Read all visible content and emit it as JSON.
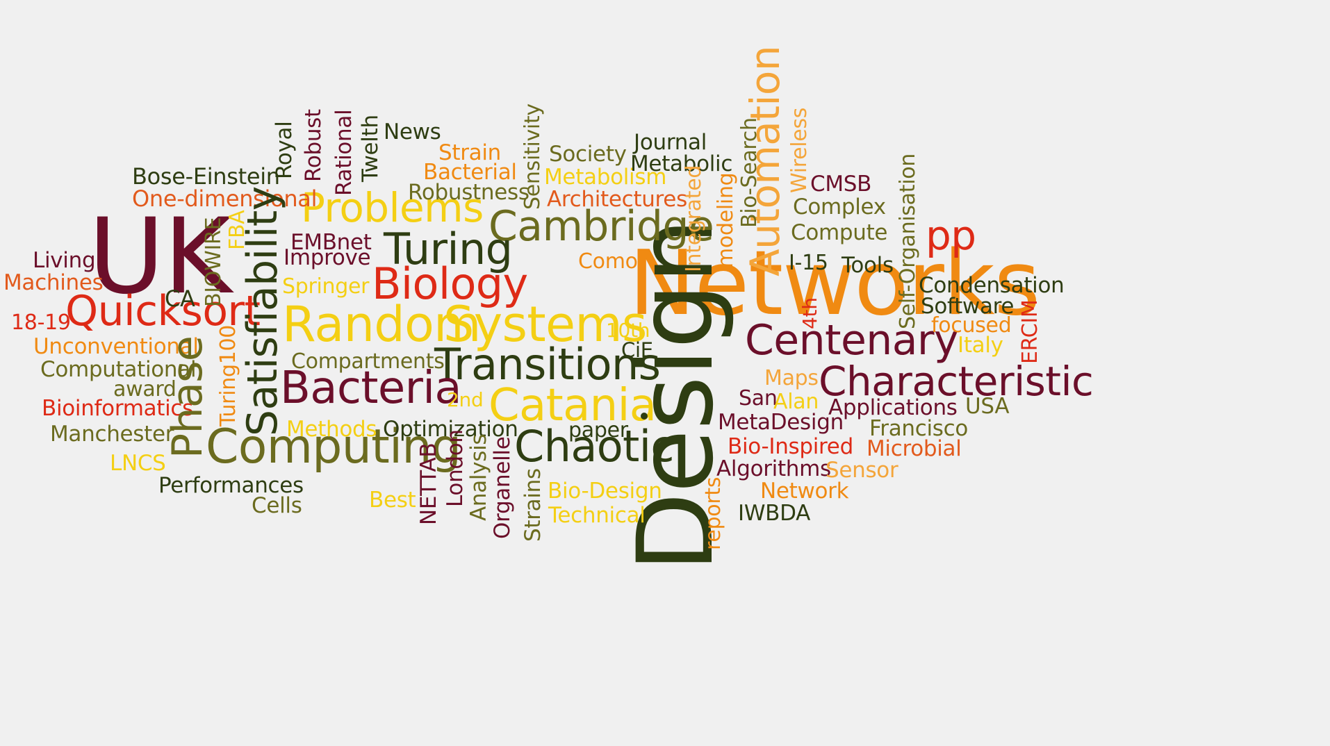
{
  "palette": {
    "maroon": "#6b0f2a",
    "dark_green": "#2e3d12",
    "olive": "#6b6b1f",
    "orange": "#f08a12",
    "light_orange": "#f4a53a",
    "yellow": "#f4cf14",
    "red": "#de2a16",
    "red_orange": "#e25a1c",
    "background": "#f0f0f0"
  },
  "words": [
    {
      "text": "Networks",
      "color": "#f08a12"
    },
    {
      "text": "Design",
      "color": "#2e3d12"
    },
    {
      "text": "UK",
      "color": "#6b0f2a"
    },
    {
      "text": "Random",
      "color": "#f4cf14"
    },
    {
      "text": "Systems",
      "color": "#f4cf14"
    },
    {
      "text": "Characteristic",
      "color": "#6b0f2a"
    },
    {
      "text": "Centenary",
      "color": "#6b0f2a"
    },
    {
      "text": "Transitions",
      "color": "#2e3d12"
    },
    {
      "text": "Computing",
      "color": "#6b6b1f"
    },
    {
      "text": "Bacteria",
      "color": "#6b0f2a"
    },
    {
      "text": "Catania",
      "color": "#f4cf14"
    },
    {
      "text": "Chaotic",
      "color": "#2e3d12"
    },
    {
      "text": "Cambridge",
      "color": "#6b6b1f"
    },
    {
      "text": "Turing",
      "color": "#2e3d12"
    },
    {
      "text": "Biology",
      "color": "#de2a16"
    },
    {
      "text": "Quicksort",
      "color": "#de2a16"
    },
    {
      "text": "Problems",
      "color": "#f4cf14"
    },
    {
      "text": "Satisfiability",
      "color": "#2e3d12"
    },
    {
      "text": "Phase",
      "color": "#6b6b1f"
    },
    {
      "text": "Automation",
      "color": "#f4a53a"
    },
    {
      "text": "pp",
      "color": "#de2a16"
    },
    {
      "text": "Bose-Einstein",
      "color": "#2e3d12"
    },
    {
      "text": "One-dimensional",
      "color": "#e25a1c"
    },
    {
      "text": "Living",
      "color": "#6b0f2a"
    },
    {
      "text": "Machines",
      "color": "#e25a1c"
    },
    {
      "text": "CA",
      "color": "#2e3d12"
    },
    {
      "text": "18-19",
      "color": "#de2a16"
    },
    {
      "text": "Unconventional",
      "color": "#f08a12"
    },
    {
      "text": "Computational",
      "color": "#6b6b1f"
    },
    {
      "text": "award",
      "color": "#6b6b1f"
    },
    {
      "text": "Bioinformatics",
      "color": "#de2a16"
    },
    {
      "text": "Manchester",
      "color": "#6b6b1f"
    },
    {
      "text": "LNCS",
      "color": "#f4cf14"
    },
    {
      "text": "Performances",
      "color": "#2e3d12"
    },
    {
      "text": "Cells",
      "color": "#6b6b1f"
    },
    {
      "text": "Best",
      "color": "#f4cf14"
    },
    {
      "text": "Methods",
      "color": "#f4cf14"
    },
    {
      "text": "Optimization",
      "color": "#2e3d12"
    },
    {
      "text": "2nd",
      "color": "#f4cf14"
    },
    {
      "text": "Compartments",
      "color": "#6b6b1f"
    },
    {
      "text": "Springer",
      "color": "#f4cf14"
    },
    {
      "text": "Improve",
      "color": "#6b0f2a"
    },
    {
      "text": "EMBnet",
      "color": "#6b0f2a"
    },
    {
      "text": "News",
      "color": "#2e3d12"
    },
    {
      "text": "Strain",
      "color": "#f08a12"
    },
    {
      "text": "Bacterial",
      "color": "#f08a12"
    },
    {
      "text": "Robustness",
      "color": "#6b6b1f"
    },
    {
      "text": "Society",
      "color": "#6b6b1f"
    },
    {
      "text": "Metabolism",
      "color": "#f4cf14"
    },
    {
      "text": "Architectures",
      "color": "#e25a1c"
    },
    {
      "text": "Journal",
      "color": "#2e3d12"
    },
    {
      "text": "Metabolic",
      "color": "#2e3d12"
    },
    {
      "text": "Como",
      "color": "#f08a12"
    },
    {
      "text": "10th",
      "color": "#f4cf14"
    },
    {
      "text": "CiE",
      "color": "#2e3d12"
    },
    {
      "text": "paper",
      "color": "#2e3d12"
    },
    {
      "text": "Technical",
      "color": "#f4cf14"
    },
    {
      "text": "Bio-Design",
      "color": "#f4cf14"
    },
    {
      "text": "Algorithms",
      "color": "#6b0f2a"
    },
    {
      "text": "Bio-Inspired",
      "color": "#de2a16"
    },
    {
      "text": "MetaDesign",
      "color": "#6b0f2a"
    },
    {
      "text": "Network",
      "color": "#f08a12"
    },
    {
      "text": "IWBDA",
      "color": "#2e3d12"
    },
    {
      "text": "Sensor",
      "color": "#f4a53a"
    },
    {
      "text": "Microbial",
      "color": "#e25a1c"
    },
    {
      "text": "Francisco",
      "color": "#6b6b1f"
    },
    {
      "text": "Applications",
      "color": "#6b0f2a"
    },
    {
      "text": "USA",
      "color": "#6b6b1f"
    },
    {
      "text": "San",
      "color": "#6b0f2a"
    },
    {
      "text": "Alan",
      "color": "#f4cf14"
    },
    {
      "text": "Maps",
      "color": "#f4a53a"
    },
    {
      "text": "Italy",
      "color": "#f4cf14"
    },
    {
      "text": "focused",
      "color": "#f08a12"
    },
    {
      "text": "Software",
      "color": "#2e3d12"
    },
    {
      "text": "Condensation",
      "color": "#2e3d12"
    },
    {
      "text": "Tools",
      "color": "#2e3d12"
    },
    {
      "text": "I-15",
      "color": "#2e3d12"
    },
    {
      "text": "Compute",
      "color": "#6b6b1f"
    },
    {
      "text": "Complex",
      "color": "#6b6b1f"
    },
    {
      "text": "CMSB",
      "color": "#6b0f2a"
    },
    {
      "text": "BIOWIRE",
      "color": "#6b6b1f"
    },
    {
      "text": "FBA",
      "color": "#f4cf14"
    },
    {
      "text": "Turing100",
      "color": "#f08a12"
    },
    {
      "text": "Royal",
      "color": "#2e3d12"
    },
    {
      "text": "Robust",
      "color": "#6b0f2a"
    },
    {
      "text": "Rational",
      "color": "#6b0f2a"
    },
    {
      "text": "Twelth",
      "color": "#2e3d12"
    },
    {
      "text": "Sensitivity",
      "color": "#6b6b1f"
    },
    {
      "text": "Integrated",
      "color": "#f4a53a"
    },
    {
      "text": "modeling",
      "color": "#f08a12"
    },
    {
      "text": "Bio-Search",
      "color": "#6b6b1f"
    },
    {
      "text": "Wireless",
      "color": "#f4a53a"
    },
    {
      "text": "Self-Organisation",
      "color": "#6b6b1f"
    },
    {
      "text": "ERCIM",
      "color": "#de2a16"
    },
    {
      "text": "4th",
      "color": "#de2a16"
    },
    {
      "text": "reports",
      "color": "#f08a12"
    },
    {
      "text": "NETTAB",
      "color": "#6b0f2a"
    },
    {
      "text": "London",
      "color": "#6b0f2a"
    },
    {
      "text": "Analysis",
      "color": "#6b6b1f"
    },
    {
      "text": "Organelle",
      "color": "#6b0f2a"
    },
    {
      "text": "Strains",
      "color": "#6b6b1f"
    }
  ]
}
